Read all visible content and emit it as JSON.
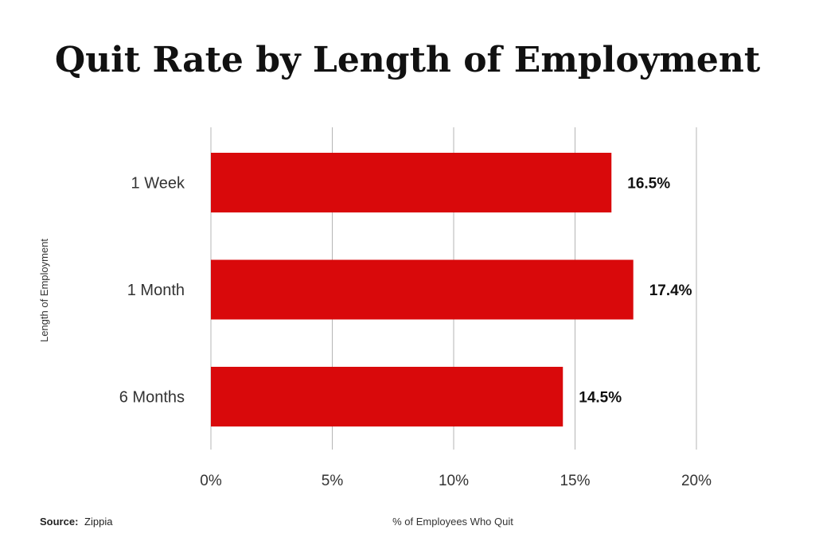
{
  "chart_data": {
    "type": "bar",
    "orientation": "horizontal",
    "title": "Quit Rate by Length of Employment",
    "categories": [
      "1 Week",
      "1 Month",
      "6 Months"
    ],
    "values": [
      16.5,
      17.4,
      14.5
    ],
    "value_labels": [
      "16.5%",
      "17.4%",
      "14.5%"
    ],
    "xlabel": "% of Employees Who Quit",
    "ylabel": "Length of Employment",
    "xlim": [
      0,
      20
    ],
    "xticks": [
      0,
      5,
      10,
      15,
      20
    ],
    "xtick_labels": [
      "0%",
      "5%",
      "10%",
      "15%",
      "20%"
    ],
    "grid": "vertical",
    "legend": "none",
    "bar_color": "#d9090b"
  },
  "source": {
    "label": "Source:",
    "name": "Zippia"
  }
}
